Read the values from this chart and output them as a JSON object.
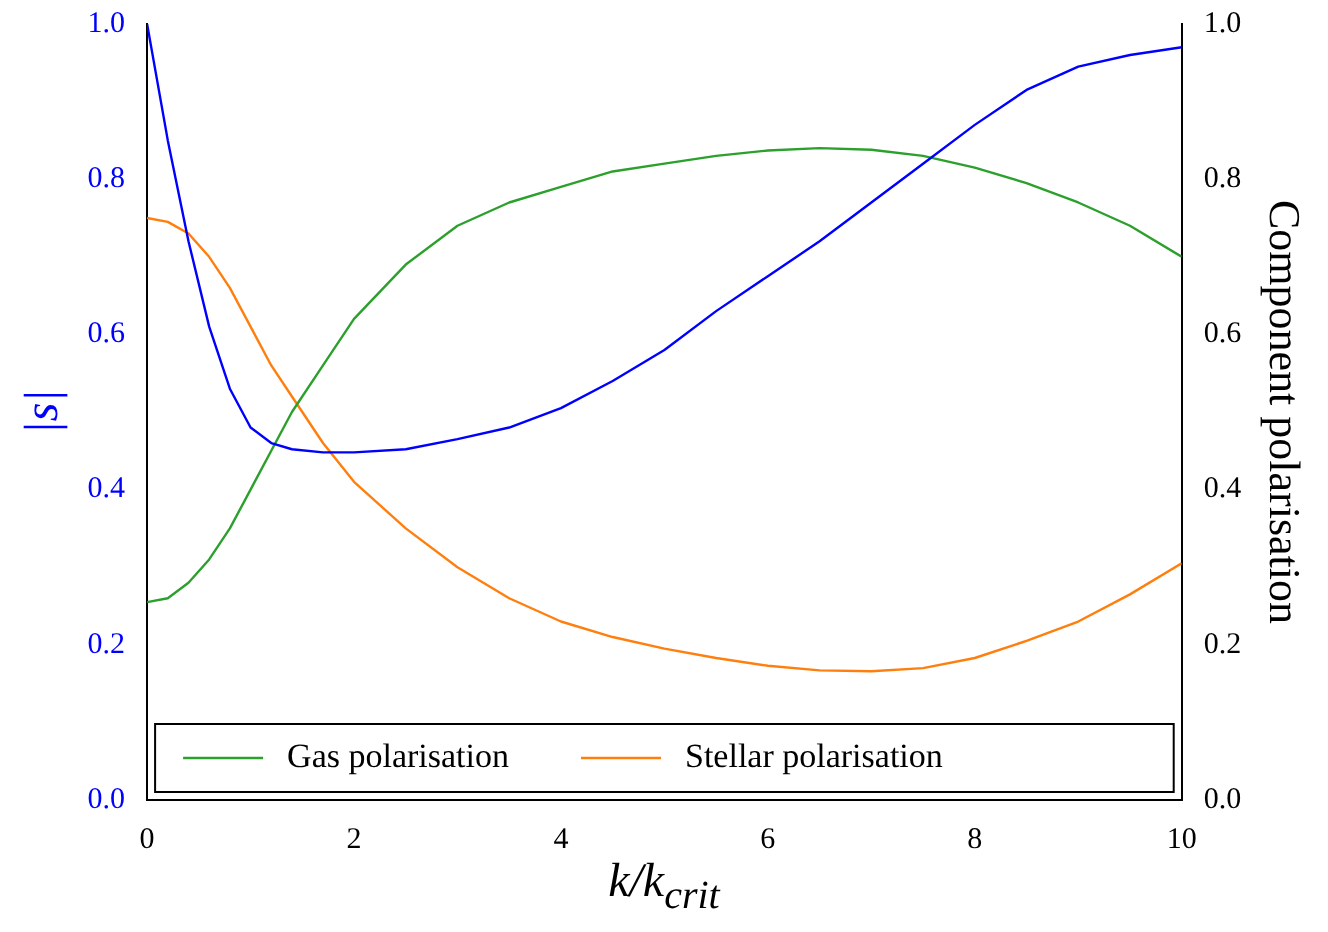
{
  "chart_data": {
    "type": "line",
    "xlabel": "k/k$_{crit}$",
    "ylabel": "|s|",
    "y2label": "Component polarisation",
    "legend": "bottom",
    "grid": false,
    "xlim": [
      0,
      10
    ],
    "xticks": [
      0,
      2,
      4,
      6,
      8,
      10
    ],
    "ylim": [
      0,
      1
    ],
    "yticks": [
      {
        "value": 0,
        "label": "0.0"
      },
      {
        "value": 0.2,
        "label": "0.2"
      },
      {
        "value": 0.4,
        "label": "0.4"
      },
      {
        "value": 0.6,
        "label": "0.6"
      },
      {
        "value": 0.8,
        "label": "0.8"
      },
      {
        "value": 1,
        "label": "1.0"
      }
    ],
    "y2lim": [
      0,
      1
    ],
    "y2ticks": [
      {
        "value": 0,
        "label": "0.0"
      },
      {
        "value": 0.2,
        "label": "0.2"
      },
      {
        "value": 0.4,
        "label": "0.4"
      },
      {
        "value": 0.6,
        "label": "0.6"
      },
      {
        "value": 0.8,
        "label": "0.8"
      },
      {
        "value": 1,
        "label": "1.0"
      }
    ],
    "series": [
      {
        "color": "#0000ff",
        "x": [
          0,
          0.2,
          0.4,
          0.6,
          0.8,
          1.0,
          1.2,
          1.4,
          1.7,
          2.0,
          2.5,
          3.0,
          3.5,
          4.0,
          4.5,
          5.0,
          5.5,
          6.0,
          6.5,
          7.0,
          7.5,
          8.0,
          8.5,
          9.0,
          9.5,
          10
        ],
        "values": [
          1.0,
          0.85,
          0.72,
          0.61,
          0.53,
          0.48,
          0.46,
          0.452,
          0.448,
          0.448,
          0.452,
          0.465,
          0.48,
          0.505,
          0.54,
          0.58,
          0.63,
          0.675,
          0.72,
          0.77,
          0.82,
          0.87,
          0.915,
          0.945,
          0.96,
          0.97
        ]
      },
      {
        "name": "Gas polarisation",
        "color": "#2ca02c",
        "axis": "y2",
        "x": [
          0,
          0.2,
          0.4,
          0.6,
          0.8,
          1.0,
          1.2,
          1.4,
          1.7,
          2.0,
          2.5,
          3.0,
          3.5,
          4.0,
          4.5,
          5.0,
          5.5,
          6.0,
          6.5,
          7.0,
          7.5,
          8.0,
          8.5,
          9.0,
          9.5,
          10
        ],
        "values": [
          0.255,
          0.26,
          0.28,
          0.31,
          0.35,
          0.4,
          0.45,
          0.5,
          0.56,
          0.62,
          0.69,
          0.74,
          0.77,
          0.79,
          0.81,
          0.82,
          0.83,
          0.837,
          0.84,
          0.838,
          0.83,
          0.815,
          0.795,
          0.77,
          0.74,
          0.7
        ]
      },
      {
        "name": "Stellar polarisation",
        "color": "#ff7f0e",
        "axis": "y2",
        "x": [
          0,
          0.2,
          0.4,
          0.6,
          0.8,
          1.0,
          1.2,
          1.4,
          1.7,
          2.0,
          2.5,
          3.0,
          3.5,
          4.0,
          4.5,
          5.0,
          5.5,
          6.0,
          6.5,
          7.0,
          7.5,
          8.0,
          8.5,
          9.0,
          9.5,
          10
        ],
        "values": [
          0.75,
          0.745,
          0.73,
          0.7,
          0.66,
          0.61,
          0.56,
          0.52,
          0.46,
          0.41,
          0.35,
          0.3,
          0.26,
          0.23,
          0.21,
          0.195,
          0.183,
          0.173,
          0.167,
          0.166,
          0.17,
          0.183,
          0.205,
          0.23,
          0.265,
          0.305
        ]
      }
    ]
  }
}
